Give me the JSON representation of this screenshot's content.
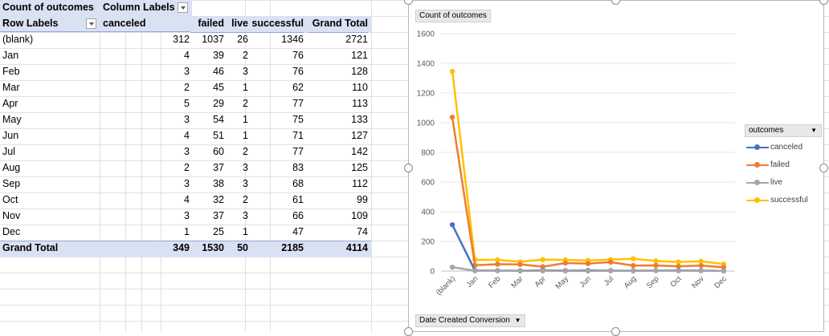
{
  "pivot": {
    "title": "Count of outcomes",
    "column_labels": "Column Labels",
    "row_labels": "Row Labels",
    "headers": [
      "canceled",
      "failed",
      "live",
      "successful",
      "Grand Total"
    ],
    "rows": [
      {
        "label": "(blank)",
        "values": [
          "312",
          "1037",
          "26",
          "1346",
          "2721"
        ]
      },
      {
        "label": "Jan",
        "values": [
          "4",
          "39",
          "2",
          "76",
          "121"
        ]
      },
      {
        "label": "Feb",
        "values": [
          "3",
          "46",
          "3",
          "76",
          "128"
        ]
      },
      {
        "label": "Mar",
        "values": [
          "2",
          "45",
          "1",
          "62",
          "110"
        ]
      },
      {
        "label": "Apr",
        "values": [
          "5",
          "29",
          "2",
          "77",
          "113"
        ]
      },
      {
        "label": "May",
        "values": [
          "3",
          "54",
          "1",
          "75",
          "133"
        ]
      },
      {
        "label": "Jun",
        "values": [
          "4",
          "51",
          "1",
          "71",
          "127"
        ]
      },
      {
        "label": "Jul",
        "values": [
          "3",
          "60",
          "2",
          "77",
          "142"
        ]
      },
      {
        "label": "Aug",
        "values": [
          "2",
          "37",
          "3",
          "83",
          "125"
        ]
      },
      {
        "label": "Sep",
        "values": [
          "3",
          "38",
          "3",
          "68",
          "112"
        ]
      },
      {
        "label": "Oct",
        "values": [
          "4",
          "32",
          "2",
          "61",
          "99"
        ]
      },
      {
        "label": "Nov",
        "values": [
          "3",
          "37",
          "3",
          "66",
          "109"
        ]
      },
      {
        "label": "Dec",
        "values": [
          "1",
          "25",
          "1",
          "47",
          "74"
        ]
      }
    ],
    "grand_total": {
      "label": "Grand Total",
      "values": [
        "349",
        "1530",
        "50",
        "2185",
        "4114"
      ]
    }
  },
  "chart": {
    "value_field_button": "Count of outcomes",
    "axis_field_button": "Date Created Conversion",
    "legend_title": "outcomes"
  },
  "chart_data": {
    "type": "line",
    "categories": [
      "(blank)",
      "Jan",
      "Feb",
      "Mar",
      "Apr",
      "May",
      "Jun",
      "Jul",
      "Aug",
      "Sep",
      "Oct",
      "Nov",
      "Dec"
    ],
    "series": [
      {
        "name": "canceled",
        "color": "#4472c4",
        "values": [
          312,
          4,
          3,
          2,
          5,
          3,
          4,
          3,
          2,
          3,
          4,
          3,
          1
        ]
      },
      {
        "name": "failed",
        "color": "#ed7d31",
        "values": [
          1037,
          39,
          46,
          45,
          29,
          54,
          51,
          60,
          37,
          38,
          32,
          37,
          25
        ]
      },
      {
        "name": "live",
        "color": "#a5a5a5",
        "values": [
          26,
          2,
          3,
          1,
          2,
          1,
          1,
          2,
          3,
          3,
          2,
          3,
          1
        ]
      },
      {
        "name": "successful",
        "color": "#ffc000",
        "values": [
          1346,
          76,
          76,
          62,
          77,
          75,
          71,
          77,
          83,
          68,
          61,
          66,
          47
        ]
      }
    ],
    "yticks": [
      "0",
      "200",
      "400",
      "600",
      "800",
      "1000",
      "1200",
      "1400",
      "1600"
    ],
    "ylim": [
      0,
      1600
    ],
    "grid": true,
    "legend_position": "right"
  }
}
